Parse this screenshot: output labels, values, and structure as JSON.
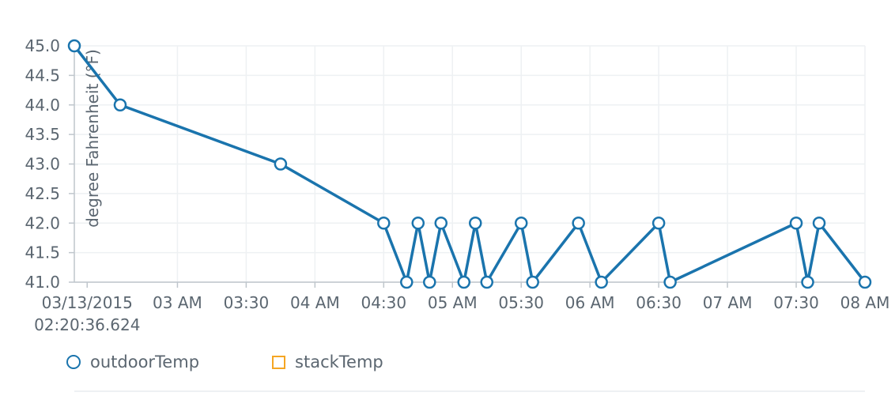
{
  "chart_data": {
    "type": "line",
    "ylabel": "degree Fahrenheit (°F)",
    "xlabel": "",
    "ylim": [
      41.0,
      45.0
    ],
    "y_ticks": [
      "45.0",
      "44.5",
      "44.0",
      "43.5",
      "43.0",
      "42.5",
      "42.0",
      "41.5",
      "41.0"
    ],
    "x_ticks": [
      {
        "time": "03/13/2015 02:20:36.624",
        "label": "03/13/2015",
        "label2": "02:20:36.624"
      },
      {
        "time": "03/13/2015 03:00",
        "label": "03 AM"
      },
      {
        "time": "03/13/2015 03:30",
        "label": "03:30"
      },
      {
        "time": "03/13/2015 04:00",
        "label": "04 AM"
      },
      {
        "time": "03/13/2015 04:30",
        "label": "04:30"
      },
      {
        "time": "03/13/2015 05:00",
        "label": "05 AM"
      },
      {
        "time": "03/13/2015 05:30",
        "label": "05:30"
      },
      {
        "time": "03/13/2015 06:00",
        "label": "06 AM"
      },
      {
        "time": "03/13/2015 06:30",
        "label": "06:30"
      },
      {
        "time": "03/13/2015 07:00",
        "label": "07 AM"
      },
      {
        "time": "03/13/2015 07:30",
        "label": "07:30"
      },
      {
        "time": "03/13/2015 08:00",
        "label": "08 AM"
      }
    ],
    "grid": true,
    "legend_position": "bottom-left",
    "series": [
      {
        "name": "outdoorTemp",
        "color": "#1a74ad",
        "marker": "circle",
        "points": [
          {
            "x": "03/13/2015 02:15",
            "y": 45.0
          },
          {
            "x": "03/13/2015 02:35",
            "y": 44.0
          },
          {
            "x": "03/13/2015 03:45",
            "y": 43.0
          },
          {
            "x": "03/13/2015 04:30",
            "y": 42.0
          },
          {
            "x": "03/13/2015 04:40",
            "y": 41.0
          },
          {
            "x": "03/13/2015 04:45",
            "y": 42.0
          },
          {
            "x": "03/13/2015 04:50",
            "y": 41.0
          },
          {
            "x": "03/13/2015 04:55",
            "y": 42.0
          },
          {
            "x": "03/13/2015 05:05",
            "y": 41.0
          },
          {
            "x": "03/13/2015 05:10",
            "y": 42.0
          },
          {
            "x": "03/13/2015 05:15",
            "y": 41.0
          },
          {
            "x": "03/13/2015 05:30",
            "y": 42.0
          },
          {
            "x": "03/13/2015 05:35",
            "y": 41.0
          },
          {
            "x": "03/13/2015 05:55",
            "y": 42.0
          },
          {
            "x": "03/13/2015 06:05",
            "y": 41.0
          },
          {
            "x": "03/13/2015 06:30",
            "y": 42.0
          },
          {
            "x": "03/13/2015 06:35",
            "y": 41.0
          },
          {
            "x": "03/13/2015 07:30",
            "y": 42.0
          },
          {
            "x": "03/13/2015 07:35",
            "y": 41.0
          },
          {
            "x": "03/13/2015 07:40",
            "y": 42.0
          },
          {
            "x": "03/13/2015 08:00",
            "y": 41.0
          }
        ]
      },
      {
        "name": "stackTemp",
        "color": "#f5a623",
        "marker": "square",
        "points": []
      }
    ]
  }
}
